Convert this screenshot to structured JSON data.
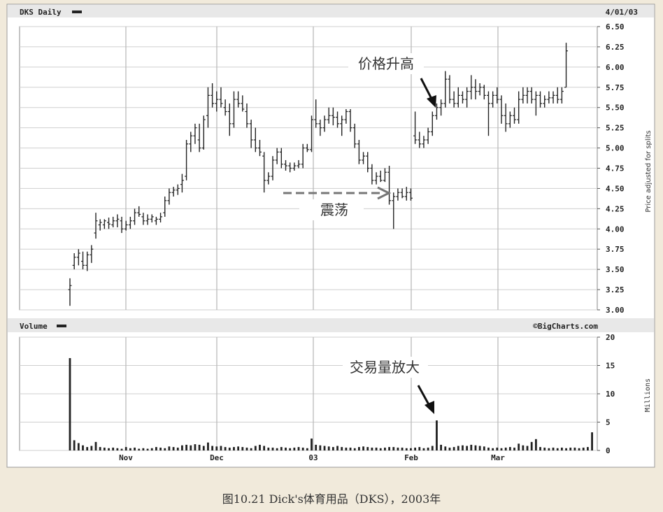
{
  "chart_data": [
    {
      "type": "ohlc",
      "title": "DKS Daily",
      "date_label": "4/01/03",
      "ylabel": "Price adjusted for splits",
      "ylim": [
        3.0,
        6.5
      ],
      "yticks": [
        "6.50",
        "6.25",
        "6.00",
        "5.75",
        "5.50",
        "5.25",
        "5.00",
        "4.75",
        "4.50",
        "4.25",
        "4.00",
        "3.75",
        "3.50",
        "3.25",
        "3.00"
      ],
      "x_tick_labels": [
        "Nov",
        "Dec",
        "03",
        "Feb",
        "Mar"
      ],
      "annotations": [
        {
          "text": "价格升高",
          "target_date_index": 87
        },
        {
          "text": "震荡",
          "from_date_index": 58,
          "to_date_index": 80
        }
      ],
      "series": [
        {
          "values": [
            [
              3.25,
              3.39,
              3.05,
              3.3
            ],
            [
              3.55,
              3.7,
              3.5,
              3.65
            ],
            [
              3.65,
              3.75,
              3.55,
              3.7
            ],
            [
              3.6,
              3.72,
              3.5,
              3.55
            ],
            [
              3.55,
              3.72,
              3.48,
              3.68
            ],
            [
              3.68,
              3.8,
              3.58,
              3.75
            ],
            [
              3.95,
              4.2,
              3.88,
              4.1
            ],
            [
              4.05,
              4.12,
              3.98,
              4.08
            ],
            [
              4.05,
              4.12,
              4.0,
              4.1
            ],
            [
              4.08,
              4.14,
              4.0,
              4.06
            ],
            [
              4.05,
              4.15,
              4.02,
              4.1
            ],
            [
              4.1,
              4.18,
              4.02,
              4.12
            ],
            [
              4.1,
              4.15,
              3.95,
              4.0
            ],
            [
              4.0,
              4.1,
              3.98,
              4.05
            ],
            [
              4.05,
              4.15,
              4.0,
              4.1
            ],
            [
              4.1,
              4.25,
              4.05,
              4.2
            ],
            [
              4.2,
              4.28,
              4.15,
              4.18
            ],
            [
              4.15,
              4.2,
              4.05,
              4.1
            ],
            [
              4.1,
              4.18,
              4.05,
              4.12
            ],
            [
              4.12,
              4.18,
              4.08,
              4.15
            ],
            [
              4.1,
              4.15,
              4.05,
              4.12
            ],
            [
              4.12,
              4.2,
              4.08,
              4.15
            ],
            [
              4.2,
              4.4,
              4.15,
              4.35
            ],
            [
              4.35,
              4.5,
              4.3,
              4.45
            ],
            [
              4.45,
              4.52,
              4.4,
              4.48
            ],
            [
              4.48,
              4.55,
              4.42,
              4.5
            ],
            [
              4.55,
              4.68,
              4.45,
              4.6
            ],
            [
              4.65,
              5.1,
              4.6,
              5.05
            ],
            [
              5.05,
              5.2,
              4.95,
              5.15
            ],
            [
              5.15,
              5.3,
              5.05,
              5.25
            ],
            [
              5.1,
              5.3,
              4.95,
              5.0
            ],
            [
              5.0,
              5.4,
              4.98,
              5.35
            ],
            [
              5.4,
              5.75,
              5.25,
              5.65
            ],
            [
              5.65,
              5.8,
              5.5,
              5.55
            ],
            [
              5.55,
              5.7,
              5.45,
              5.6
            ],
            [
              5.6,
              5.75,
              5.5,
              5.55
            ],
            [
              5.5,
              5.6,
              5.4,
              5.45
            ],
            [
              5.45,
              5.55,
              5.15,
              5.3
            ],
            [
              5.3,
              5.7,
              5.25,
              5.6
            ],
            [
              5.6,
              5.7,
              5.5,
              5.55
            ],
            [
              5.55,
              5.65,
              5.45,
              5.48
            ],
            [
              5.45,
              5.55,
              5.25,
              5.3
            ],
            [
              5.3,
              5.35,
              5.0,
              5.1
            ],
            [
              5.1,
              5.25,
              4.95,
              5.0
            ],
            [
              5.0,
              5.1,
              4.9,
              4.95
            ],
            [
              4.9,
              4.95,
              4.45,
              4.6
            ],
            [
              4.6,
              4.7,
              4.55,
              4.65
            ],
            [
              4.65,
              4.9,
              4.6,
              4.85
            ],
            [
              4.85,
              5.0,
              4.8,
              4.95
            ],
            [
              4.95,
              5.0,
              4.75,
              4.8
            ],
            [
              4.8,
              4.85,
              4.72,
              4.78
            ],
            [
              4.78,
              4.82,
              4.7,
              4.75
            ],
            [
              4.75,
              4.82,
              4.72,
              4.78
            ],
            [
              4.78,
              4.85,
              4.75,
              4.8
            ],
            [
              4.8,
              5.05,
              4.75,
              5.0
            ],
            [
              5.0,
              5.05,
              4.95,
              4.98
            ],
            [
              4.98,
              5.4,
              4.95,
              5.35
            ],
            [
              5.35,
              5.6,
              5.25,
              5.3
            ],
            [
              5.3,
              5.35,
              5.15,
              5.25
            ],
            [
              5.25,
              5.4,
              5.2,
              5.35
            ],
            [
              5.35,
              5.5,
              5.3,
              5.4
            ],
            [
              5.4,
              5.5,
              5.28,
              5.38
            ],
            [
              5.38,
              5.45,
              5.25,
              5.3
            ],
            [
              5.3,
              5.4,
              5.15,
              5.35
            ],
            [
              5.35,
              5.48,
              5.3,
              5.45
            ],
            [
              5.45,
              5.48,
              5.2,
              5.25
            ],
            [
              5.25,
              5.3,
              5.0,
              5.05
            ],
            [
              5.05,
              5.1,
              4.8,
              4.85
            ],
            [
              4.85,
              4.95,
              4.8,
              4.9
            ],
            [
              4.9,
              4.95,
              4.7,
              4.75
            ],
            [
              4.75,
              4.8,
              4.55,
              4.6
            ],
            [
              4.6,
              4.7,
              4.55,
              4.65
            ],
            [
              4.65,
              4.72,
              4.58,
              4.6
            ],
            [
              4.6,
              4.75,
              4.58,
              4.7
            ],
            [
              4.7,
              4.78,
              4.3,
              4.35
            ],
            [
              4.35,
              4.45,
              4.0,
              4.4
            ],
            [
              4.4,
              4.5,
              4.35,
              4.45
            ],
            [
              4.45,
              4.5,
              4.38,
              4.4
            ],
            [
              4.4,
              4.52,
              4.35,
              4.45
            ],
            [
              4.45,
              4.5,
              4.35,
              4.38
            ],
            [
              5.15,
              5.45,
              5.05,
              5.1
            ],
            [
              5.1,
              5.2,
              5.0,
              5.05
            ],
            [
              5.05,
              5.15,
              5.0,
              5.1
            ],
            [
              5.1,
              5.25,
              5.05,
              5.2
            ],
            [
              5.2,
              5.45,
              5.15,
              5.4
            ],
            [
              5.4,
              5.55,
              5.35,
              5.5
            ],
            [
              5.5,
              5.6,
              5.4,
              5.55
            ],
            [
              5.55,
              5.95,
              5.5,
              5.85
            ],
            [
              5.85,
              5.9,
              5.55,
              5.6
            ],
            [
              5.6,
              5.7,
              5.5,
              5.55
            ],
            [
              5.55,
              5.75,
              5.5,
              5.65
            ],
            [
              5.65,
              5.7,
              5.55,
              5.6
            ],
            [
              5.6,
              5.75,
              5.5,
              5.7
            ],
            [
              5.7,
              5.9,
              5.6,
              5.75
            ],
            [
              5.75,
              5.85,
              5.6,
              5.7
            ],
            [
              5.7,
              5.8,
              5.65,
              5.75
            ],
            [
              5.75,
              5.78,
              5.6,
              5.65
            ],
            [
              5.65,
              5.7,
              5.15,
              5.55
            ],
            [
              5.55,
              5.7,
              5.5,
              5.65
            ],
            [
              5.65,
              5.75,
              5.55,
              5.6
            ],
            [
              5.6,
              5.65,
              5.3,
              5.4
            ],
            [
              5.4,
              5.55,
              5.2,
              5.3
            ],
            [
              5.3,
              5.45,
              5.25,
              5.4
            ],
            [
              5.4,
              5.5,
              5.3,
              5.35
            ],
            [
              5.35,
              5.7,
              5.3,
              5.6
            ],
            [
              5.6,
              5.75,
              5.55,
              5.65
            ],
            [
              5.65,
              5.75,
              5.55,
              5.7
            ],
            [
              5.7,
              5.75,
              5.55,
              5.6
            ],
            [
              5.6,
              5.7,
              5.4,
              5.65
            ],
            [
              5.65,
              5.7,
              5.5,
              5.55
            ],
            [
              5.55,
              5.65,
              5.5,
              5.6
            ],
            [
              5.6,
              5.7,
              5.55,
              5.62
            ],
            [
              5.62,
              5.7,
              5.55,
              5.65
            ],
            [
              5.65,
              5.75,
              5.55,
              5.6
            ],
            [
              5.6,
              5.75,
              5.55,
              5.7
            ],
            [
              5.75,
              6.3,
              5.75,
              6.2
            ]
          ]
        }
      ]
    },
    {
      "type": "bar",
      "title": "Volume",
      "ylabel": "Millions",
      "ylim": [
        0,
        20
      ],
      "yticks": [
        "20",
        "15",
        "10",
        "5",
        "0"
      ],
      "x_tick_labels": [
        "Nov",
        "Dec",
        "03",
        "Feb",
        "Mar"
      ],
      "watermark": "©BigCharts.com",
      "annotations": [
        {
          "text": "交易量放大",
          "target_date_index": 86
        }
      ],
      "values": [
        16.3,
        1.8,
        1.3,
        0.9,
        0.6,
        0.8,
        1.5,
        0.6,
        0.5,
        0.4,
        0.5,
        0.4,
        0.3,
        0.6,
        0.4,
        0.5,
        0.3,
        0.4,
        0.3,
        0.4,
        0.6,
        0.5,
        0.4,
        0.7,
        0.6,
        0.5,
        0.9,
        1.0,
        0.9,
        1.1,
        1.0,
        0.8,
        1.4,
        0.8,
        0.7,
        0.8,
        0.6,
        0.5,
        0.6,
        0.7,
        0.6,
        0.5,
        0.4,
        0.8,
        1.0,
        0.8,
        0.5,
        0.5,
        0.4,
        0.6,
        0.5,
        0.4,
        0.5,
        0.6,
        0.5,
        0.4,
        2.1,
        1.0,
        0.9,
        0.8,
        0.7,
        0.6,
        0.8,
        0.6,
        0.5,
        0.5,
        0.4,
        0.6,
        0.7,
        0.6,
        0.5,
        0.5,
        0.4,
        0.5,
        0.6,
        0.6,
        0.5,
        0.5,
        0.4,
        0.4,
        0.5,
        0.6,
        0.4,
        0.5,
        0.8,
        5.3,
        1.0,
        0.7,
        0.5,
        0.6,
        0.8,
        0.9,
        0.8,
        1.0,
        0.9,
        0.8,
        0.7,
        0.5,
        0.4,
        0.5,
        0.4,
        0.5,
        0.6,
        0.5,
        1.2,
        0.9,
        0.8,
        1.5,
        2.0,
        0.6,
        0.5,
        0.4,
        0.5,
        0.4,
        0.5,
        0.4,
        0.5,
        0.5,
        0.4,
        0.5,
        0.6,
        3.2
      ]
    }
  ],
  "caption": "图10.21    Dick's体育用品（DKS），2003年"
}
